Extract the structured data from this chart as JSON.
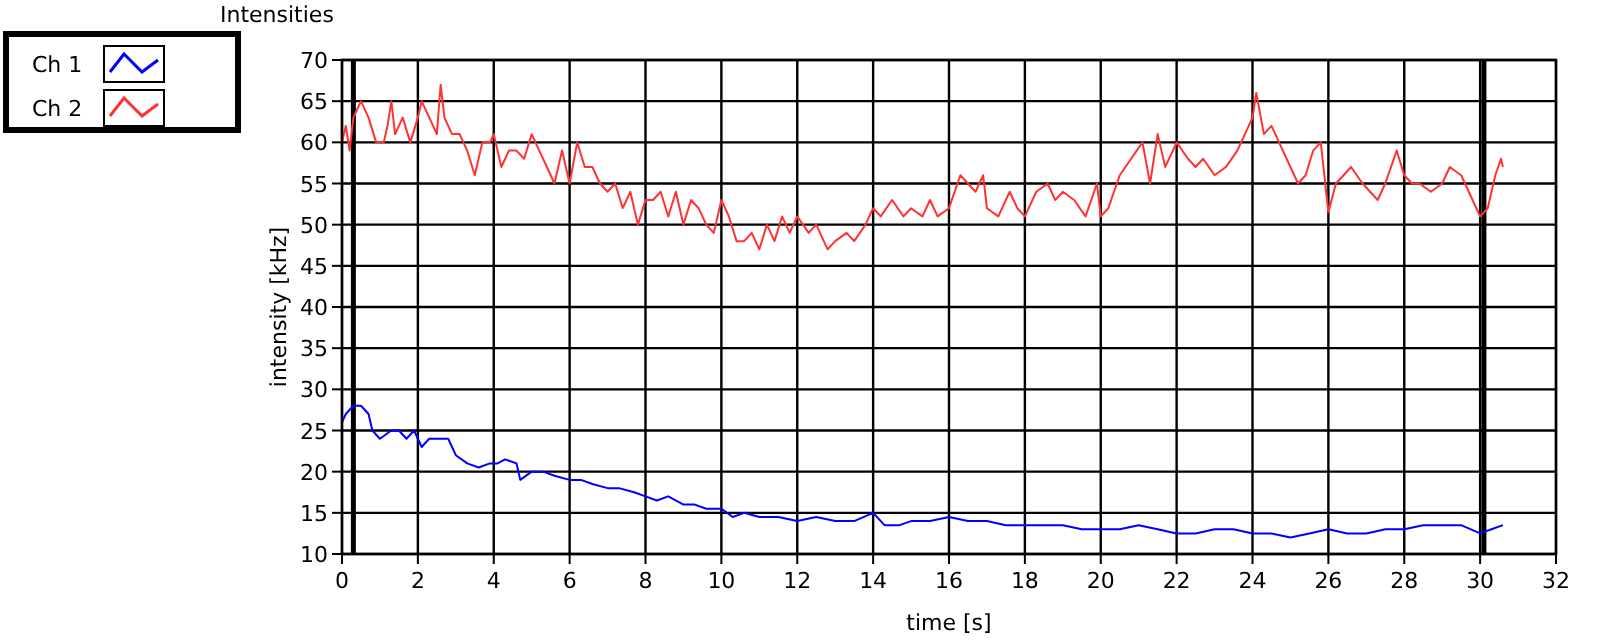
{
  "chart_data": {
    "type": "line",
    "title": "Intensities",
    "xlabel": "time [s]",
    "ylabel": "intensity [kHz]",
    "xlim": [
      0,
      32
    ],
    "xticks": [
      0,
      2,
      4,
      6,
      8,
      10,
      12,
      14,
      16,
      18,
      20,
      22,
      24,
      26,
      28,
      30,
      32
    ],
    "ylim": [
      10,
      70
    ],
    "yticks": [
      10,
      15,
      20,
      25,
      30,
      35,
      40,
      45,
      50,
      55,
      60,
      65,
      70
    ],
    "grid": true,
    "legend": "top left",
    "marker": "none",
    "line_style": "solid",
    "ref_lines": [
      {
        "axis": "x",
        "value": 0.3,
        "color": "#000000"
      },
      {
        "axis": "x",
        "value": 30.1,
        "color": "#000000"
      }
    ],
    "series": [
      {
        "name": "Ch 1",
        "color": "#0000ff",
        "x": [
          0,
          0.1,
          0.3,
          0.5,
          0.7,
          0.8,
          1.0,
          1.3,
          1.5,
          1.7,
          1.9,
          2.1,
          2.3,
          2.6,
          2.8,
          3.0,
          3.3,
          3.6,
          3.9,
          4.1,
          4.3,
          4.6,
          4.7,
          5.0,
          5.3,
          5.6,
          6.0,
          6.3,
          6.6,
          7.0,
          7.3,
          7.7,
          8.0,
          8.3,
          8.6,
          9.0,
          9.3,
          9.6,
          10.0,
          10.3,
          10.6,
          11.0,
          11.5,
          12.0,
          12.5,
          13.0,
          13.5,
          14.0,
          14.3,
          14.7,
          15.0,
          15.5,
          16.0,
          16.5,
          17,
          17.5,
          18,
          18.5,
          19,
          19.5,
          20,
          20.5,
          21,
          21.5,
          22,
          22.5,
          23,
          23.5,
          24,
          24.5,
          25,
          25.5,
          26,
          26.5,
          27,
          27.5,
          28,
          28.5,
          29,
          29.5,
          30,
          30.3,
          30.6
        ],
        "values": [
          26,
          27,
          28,
          28,
          27,
          25,
          24,
          25,
          25,
          24,
          25,
          23,
          24,
          24,
          24,
          22,
          21,
          20.5,
          21,
          21,
          21.5,
          21,
          19,
          20,
          20,
          19.5,
          19,
          19,
          18.5,
          18,
          18,
          17.5,
          17,
          16.5,
          17,
          16,
          16,
          15.5,
          15.5,
          14.5,
          15,
          14.5,
          14.5,
          14,
          14.5,
          14,
          14,
          15,
          13.5,
          13.5,
          14,
          14,
          14.5,
          14,
          14,
          13.5,
          13.5,
          13.5,
          13.5,
          13,
          13,
          13,
          13.5,
          13,
          12.5,
          12.5,
          13,
          13,
          12.5,
          12.5,
          12,
          12.5,
          13,
          12.5,
          12.5,
          13,
          13,
          13.5,
          13.5,
          13.5,
          12.5,
          13,
          13.5
        ]
      },
      {
        "name": "Ch 2",
        "color": "#ff3333",
        "x": [
          0,
          0.1,
          0.2,
          0.3,
          0.5,
          0.7,
          0.9,
          1.1,
          1.2,
          1.3,
          1.4,
          1.6,
          1.8,
          2.0,
          2.1,
          2.3,
          2.5,
          2.6,
          2.7,
          2.9,
          3.1,
          3.3,
          3.5,
          3.7,
          3.9,
          4.0,
          4.2,
          4.4,
          4.6,
          4.8,
          5.0,
          5.2,
          5.4,
          5.6,
          5.8,
          6.0,
          6.2,
          6.4,
          6.6,
          6.8,
          7.0,
          7.2,
          7.4,
          7.6,
          7.8,
          8.0,
          8.2,
          8.4,
          8.6,
          8.8,
          9.0,
          9.2,
          9.4,
          9.6,
          9.8,
          10.0,
          10.2,
          10.4,
          10.6,
          10.8,
          11.0,
          11.2,
          11.4,
          11.6,
          11.8,
          12.0,
          12.3,
          12.5,
          12.8,
          13.0,
          13.3,
          13.5,
          13.8,
          14.0,
          14.2,
          14.5,
          14.8,
          15.0,
          15.3,
          15.5,
          15.7,
          16.0,
          16.3,
          16.5,
          16.7,
          16.9,
          17.0,
          17.3,
          17.6,
          17.8,
          18.0,
          18.3,
          18.6,
          18.8,
          19.0,
          19.3,
          19.6,
          19.9,
          20.0,
          20.2,
          20.5,
          20.8,
          21.1,
          21.3,
          21.5,
          21.7,
          22.0,
          22.3,
          22.5,
          22.7,
          23.0,
          23.3,
          23.6,
          23.8,
          24.0,
          24.1,
          24.3,
          24.5,
          24.8,
          25.0,
          25.2,
          25.4,
          25.6,
          25.8,
          26.0,
          26.2,
          26.4,
          26.6,
          26.9,
          27.1,
          27.3,
          27.5,
          27.8,
          28.0,
          28.2,
          28.4,
          28.7,
          29.0,
          29.2,
          29.5,
          29.8,
          30.0,
          30.2,
          30.4,
          30.55,
          30.6
        ],
        "values": [
          60,
          62,
          59,
          63,
          65,
          63,
          60,
          60,
          62,
          65,
          61,
          63,
          60,
          63,
          65,
          63,
          61,
          67,
          63,
          61,
          61,
          59,
          56,
          60,
          60,
          61,
          57,
          59,
          59,
          58,
          61,
          59,
          57,
          55,
          59,
          55,
          60,
          57,
          57,
          55,
          54,
          55,
          52,
          54,
          50,
          53,
          53,
          54,
          51,
          54,
          50,
          53,
          52,
          50,
          49,
          53,
          51,
          48,
          48,
          49,
          47,
          50,
          48,
          51,
          49,
          51,
          49,
          50,
          47,
          48,
          49,
          48,
          50,
          52,
          51,
          53,
          51,
          52,
          51,
          53,
          51,
          52,
          56,
          55,
          54,
          56,
          52,
          51,
          54,
          52,
          51,
          54,
          55,
          53,
          54,
          53,
          51,
          55,
          51,
          52,
          56,
          58,
          60,
          55,
          61,
          57,
          60,
          58,
          57,
          58,
          56,
          57,
          59,
          61,
          63,
          66,
          61,
          62,
          59,
          57,
          55,
          56,
          59,
          60,
          51.5,
          55,
          56,
          57,
          55,
          54,
          53,
          55,
          59,
          56,
          55,
          55,
          54,
          55,
          57,
          56,
          53,
          51,
          52,
          56,
          58,
          57
        ]
      }
    ]
  }
}
